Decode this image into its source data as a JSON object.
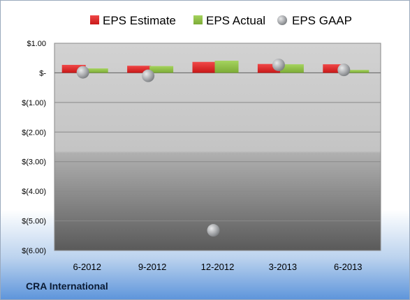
{
  "company_label": "CRA International",
  "colors": {
    "estimate": "#d21f1f",
    "actual": "#8cbf3f",
    "gaap": "#a6a9ad",
    "accent": "#5e95db"
  },
  "chart_data": {
    "type": "bar",
    "categories": [
      "6-2012",
      "9-2012",
      "12-2012",
      "3-2013",
      "6-2013"
    ],
    "series": [
      {
        "name": "EPS Estimate",
        "kind": "bar",
        "values": [
          0.27,
          0.24,
          0.37,
          0.3,
          0.29
        ]
      },
      {
        "name": "EPS Actual",
        "kind": "bar",
        "values": [
          0.15,
          0.23,
          0.41,
          0.29,
          0.1
        ]
      },
      {
        "name": "EPS GAAP",
        "kind": "scatter",
        "values": [
          0.02,
          -0.1,
          -5.32,
          0.27,
          0.1
        ]
      }
    ],
    "ylim": [
      -6,
      1
    ],
    "yticks": [
      1,
      0,
      -1,
      -2,
      -3,
      -4,
      -5,
      -6
    ],
    "ytick_labels": [
      "$1.00",
      "$-",
      "$(1.00)",
      "$(2.00)",
      "$(3.00)",
      "$(4.00)",
      "$(5.00)",
      "$(6.00)"
    ],
    "grid": true,
    "legend_position": "top"
  }
}
